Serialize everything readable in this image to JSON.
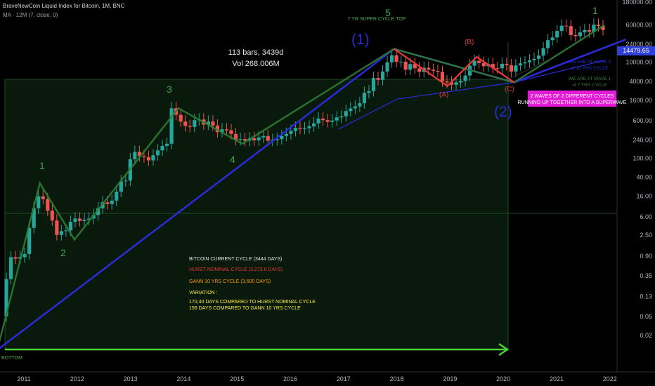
{
  "header": {
    "symbol_line": "BraveNewCoin Liquid Index for Bitcoin, 1M, BNC",
    "ma_line": "MA · 12M (7, close, 0)"
  },
  "measure": {
    "bars": "113 bars, 3439d",
    "vol": "Vol 268.006M"
  },
  "price_tag": "14479.65",
  "chart_data": {
    "type": "candlestick",
    "title": "",
    "xlabel": "",
    "ylabel": "",
    "y_scale": "log",
    "x_ticks": [
      "2011",
      "2012",
      "2013",
      "2014",
      "2015",
      "2016",
      "2017",
      "2018",
      "2019",
      "2020",
      "2021",
      "2022"
    ],
    "y_ticks": [
      "180000.00",
      "60000.00",
      "24000.00",
      "10000.00",
      "4000.00",
      "1600.00",
      "600.00",
      "240.00",
      "100.00",
      "40.00",
      "16.00",
      "6.00",
      "2.50",
      "0.90",
      "0.35",
      "0.13",
      "0.05",
      "0.02"
    ],
    "ylim": [
      0.01,
      200000
    ],
    "grid": false,
    "candles_close": [
      0.3,
      0.86,
      0.8,
      0.86,
      1.0,
      3.5,
      9,
      16,
      14,
      8,
      5,
      2.5,
      3,
      3.1,
      4.7,
      5.5,
      4.9,
      5.2,
      5.5,
      6.5,
      9,
      12,
      11,
      13,
      20,
      33,
      34,
      95,
      135,
      110,
      105,
      90,
      115,
      145,
      180,
      200,
      1100,
      800,
      580,
      470,
      450,
      620,
      640,
      500,
      580,
      480,
      350,
      400,
      380,
      320,
      240,
      250,
      230,
      260,
      235,
      270,
      290,
      230,
      240,
      250,
      290,
      320,
      370,
      430,
      410,
      420,
      460,
      530,
      670,
      620,
      570,
      610,
      710,
      750,
      960,
      1090,
      1200,
      1400,
      2300,
      2500,
      4700,
      4300,
      6400,
      10000,
      14000,
      10200,
      10300,
      7000,
      9200,
      7500,
      6300,
      7700,
      7000,
      6600,
      6300,
      4000,
      3800,
      3400,
      3800,
      4100,
      5300,
      8500,
      10800,
      9600,
      8300,
      9200,
      7600,
      7500,
      9300,
      8700,
      6400,
      8600,
      9500,
      10000,
      11000,
      11800,
      13800,
      19700,
      29000,
      33000,
      45000,
      58000,
      57000,
      37000,
      35000,
      42000,
      47000,
      43000,
      61000,
      57000,
      47000
    ],
    "drawn_series_points": {
      "elliott_green": [
        [
          2010.5,
          0.01
        ],
        [
          2011.3,
          30
        ],
        [
          2011.95,
          2.0
        ],
        [
          2013.9,
          1100
        ],
        [
          2015.1,
          200
        ],
        [
          2017.95,
          19000
        ],
        [
          2020.2,
          3800
        ],
        [
          2021.9,
          60000
        ]
      ],
      "abc_red": [
        [
          2017.95,
          19000
        ],
        [
          2018.95,
          3200
        ],
        [
          2019.5,
          13000
        ],
        [
          2020.2,
          3800
        ]
      ],
      "blue_wave": [
        [
          2010.5,
          0.01
        ],
        [
          2017.95,
          19000
        ],
        [
          2020.2,
          3800
        ],
        [
          2022.3,
          30000
        ]
      ],
      "channel_thin_blue": [
        [
          2016.9,
          400
        ],
        [
          2018.0,
          1700
        ],
        [
          2020.2,
          3800
        ],
        [
          2021.9,
          11000
        ]
      ],
      "time_arrow": [
        [
          2010.5,
          0.012
        ],
        [
          2020.1,
          0.012
        ]
      ]
    }
  },
  "labels": {
    "wave_1_green": "1",
    "wave_2_green": "2",
    "wave_3_green": "3",
    "wave_4_green": "4",
    "wave_5_green": "5",
    "wave_1_top": "1",
    "super_cycle_top": "7 YR SUPER CYCLE TOP",
    "wave_big_1": "(1)",
    "wave_big_2": "(2)",
    "wave_A": "(A)",
    "wave_B": "(B)",
    "wave_C": "(C)",
    "note_wave3_line1": "WE ARE AT WAVE 3",
    "note_wave3_line2": "of 10 YRS CYCLE",
    "note_wave1_line1": "WE ARE AT WAVE 1",
    "note_wave1_line2": "of 7 YRS CYCLE",
    "pink_box_line1": "2 WAVES OF 2 DIFFERENT CYCLES",
    "pink_box_line2": "RUNNING UP TOGETHER INTO A SUPERWAVE",
    "bottom": "BOTTOM",
    "info_title": "BITCOIN CURRENT CYCLE (3444 DAYS)",
    "info_hurst": "HURST NOMINAL CYCLE (3,273.6 DAYS)",
    "info_gann": "GANN 10 YRS CYCLE (3,600 DAYS)",
    "info_variation": "VARIATION :",
    "info_var1": "170,40 DAYS COMPARED TO HURST NOMINAL CYCLE",
    "info_var2": "156 DAYS COMPARED TO GANN 10 YRS CYCLE"
  },
  "colors": {
    "bull": "#26a69a",
    "bear": "#ef5350",
    "green_wave": "#2e7d32",
    "red_abc": "#e53935",
    "blue": "#2b2bd9",
    "arrow": "#4cd137",
    "pink": "#e31bd6"
  }
}
